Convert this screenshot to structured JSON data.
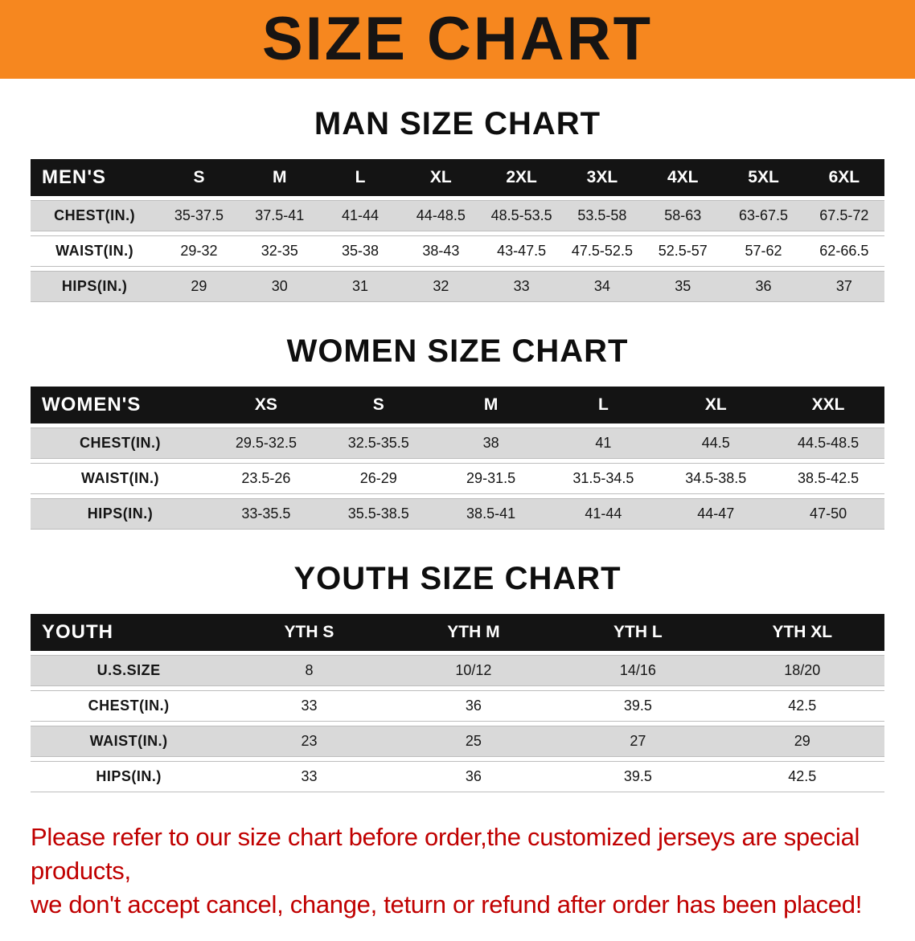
{
  "banner": {
    "title": "SIZE CHART",
    "bg_color": "#F6871F",
    "text_color": "#171413"
  },
  "tables": {
    "men": {
      "heading": "MAN SIZE CHART",
      "header_label": "MEN'S",
      "columns": [
        "S",
        "M",
        "L",
        "XL",
        "2XL",
        "3XL",
        "4XL",
        "5XL",
        "6XL"
      ],
      "rows": [
        {
          "label": "CHEST(IN.)",
          "values": [
            "35-37.5",
            "37.5-41",
            "41-44",
            "44-48.5",
            "48.5-53.5",
            "53.5-58",
            "58-63",
            "63-67.5",
            "67.5-72"
          ]
        },
        {
          "label": "WAIST(IN.)",
          "values": [
            "29-32",
            "32-35",
            "35-38",
            "38-43",
            "43-47.5",
            "47.5-52.5",
            "52.5-57",
            "57-62",
            "62-66.5"
          ]
        },
        {
          "label": "HIPS(IN.)",
          "values": [
            "29",
            "30",
            "31",
            "32",
            "33",
            "34",
            "35",
            "36",
            "37"
          ]
        }
      ]
    },
    "women": {
      "heading": "WOMEN SIZE CHART",
      "header_label": "WOMEN'S",
      "columns": [
        "XS",
        "S",
        "M",
        "L",
        "XL",
        "XXL"
      ],
      "rows": [
        {
          "label": "CHEST(IN.)",
          "values": [
            "29.5-32.5",
            "32.5-35.5",
            "38",
            "41",
            "44.5",
            "44.5-48.5"
          ]
        },
        {
          "label": "WAIST(IN.)",
          "values": [
            "23.5-26",
            "26-29",
            "29-31.5",
            "31.5-34.5",
            "34.5-38.5",
            "38.5-42.5"
          ]
        },
        {
          "label": "HIPS(IN.)",
          "values": [
            "33-35.5",
            "35.5-38.5",
            "38.5-41",
            "41-44",
            "44-47",
            "47-50"
          ]
        }
      ]
    },
    "youth": {
      "heading": "YOUTH SIZE CHART",
      "header_label": "YOUTH",
      "columns": [
        "YTH S",
        "YTH M",
        "YTH L",
        "YTH XL"
      ],
      "rows": [
        {
          "label": "U.S.SIZE",
          "values": [
            "8",
            "10/12",
            "14/16",
            "18/20"
          ]
        },
        {
          "label": "CHEST(IN.)",
          "values": [
            "33",
            "36",
            "39.5",
            "42.5"
          ]
        },
        {
          "label": "WAIST(IN.)",
          "values": [
            "23",
            "25",
            "27",
            "29"
          ]
        },
        {
          "label": "HIPS(IN.)",
          "values": [
            "33",
            "36",
            "39.5",
            "42.5"
          ]
        }
      ]
    }
  },
  "footer": {
    "color": "#C00000",
    "lines": [
      "Please refer to our size chart before order,the customized jerseys are special products,",
      "we don't accept cancel, change, teturn or refund after order has been placed!"
    ]
  },
  "row_stripe_color": "#D9D9D9",
  "header_bar_color": "#141414"
}
